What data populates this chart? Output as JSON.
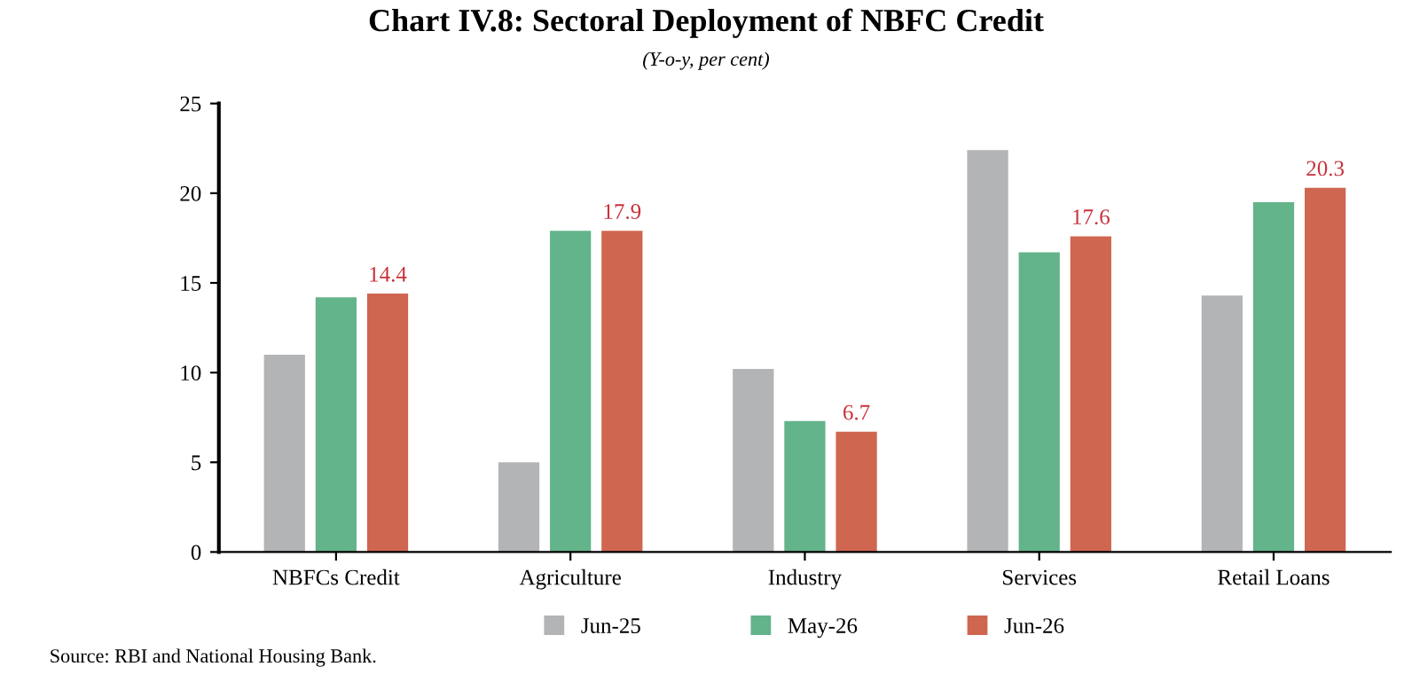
{
  "chart_data": {
    "type": "bar",
    "title": "Chart IV.8: Sectoral Deployment of NBFC Credit",
    "subtitle": "(Y-o-y, per cent)",
    "categories": [
      "NBFCs Credit",
      "Agriculture",
      "Industry",
      "Services",
      "Retail Loans"
    ],
    "series": [
      {
        "name": "Jun-25",
        "color": "#b3b4b6",
        "values": [
          11.0,
          5.0,
          10.2,
          22.4,
          14.3
        ]
      },
      {
        "name": "May-26",
        "color": "#63b38b",
        "values": [
          14.2,
          17.9,
          7.3,
          16.7,
          19.5
        ]
      },
      {
        "name": "Jun-26",
        "color": "#cf6650",
        "values": [
          14.4,
          17.9,
          6.7,
          17.6,
          20.3
        ],
        "value_labels": [
          "14.4",
          "17.9",
          "6.7",
          "17.6",
          "20.3"
        ]
      }
    ],
    "ylim": [
      0,
      25
    ],
    "yticks": [
      0,
      5,
      10,
      15,
      20,
      25
    ],
    "grid": false,
    "legend": "bottom",
    "annotations": [
      "Source: RBI and National Housing Bank."
    ]
  }
}
